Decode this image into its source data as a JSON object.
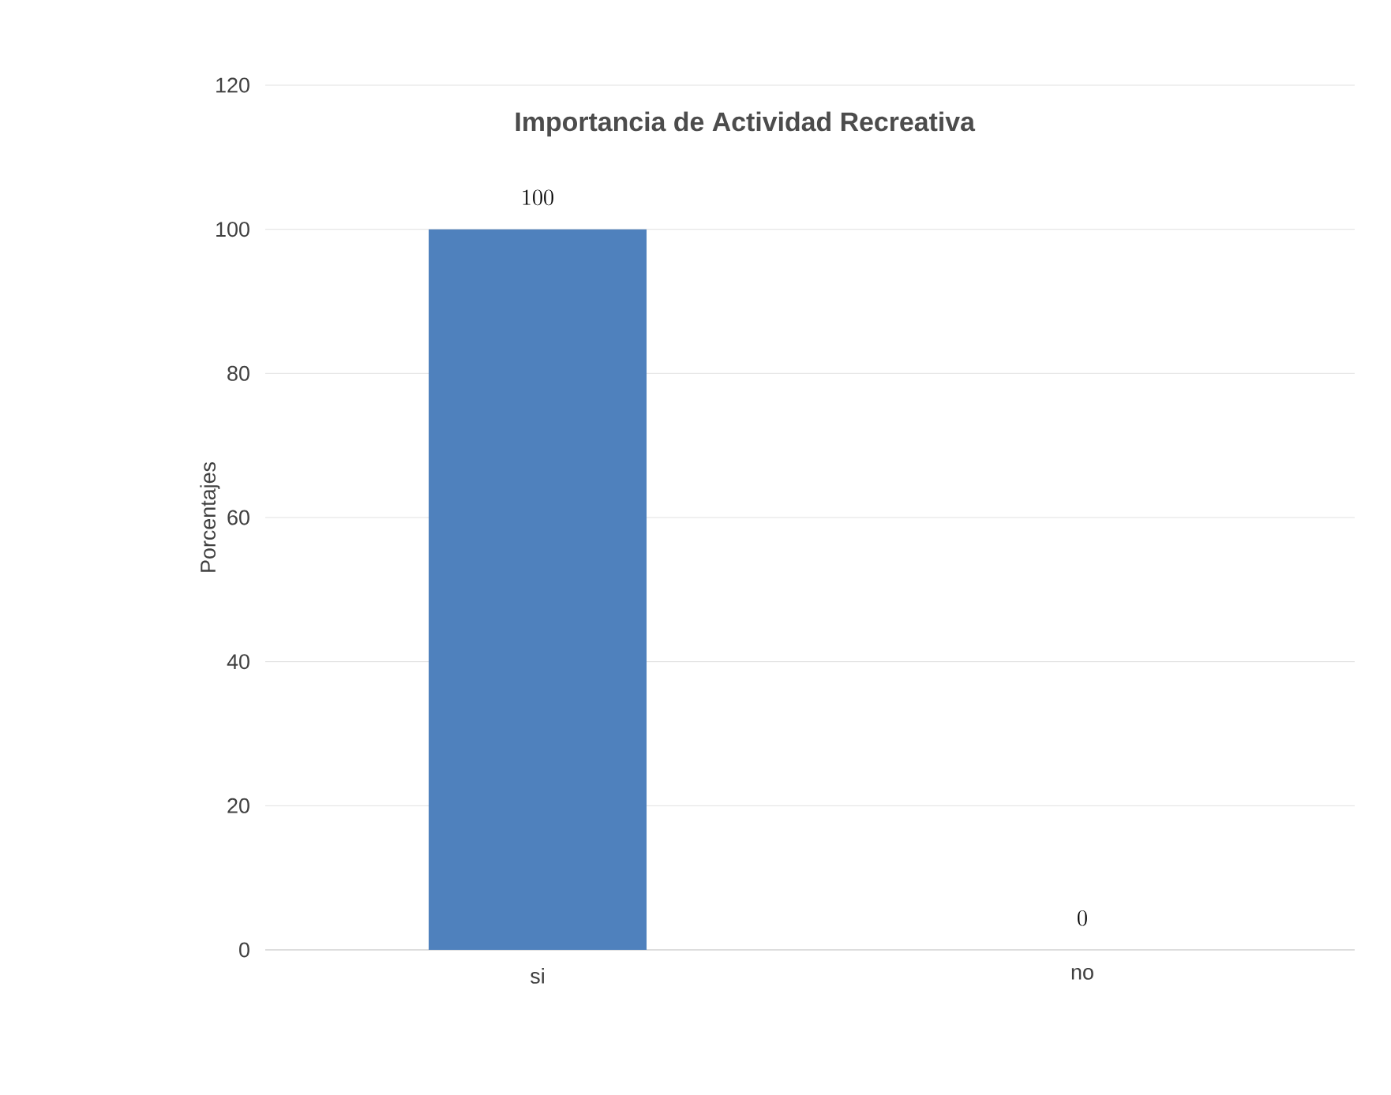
{
  "chart_data": {
    "type": "bar",
    "title": "Importancia de Actividad Recreativa",
    "ylabel": "Porcentajes",
    "categories": [
      "si",
      "no"
    ],
    "values": [
      100,
      0
    ],
    "color": "#4f81bd",
    "ylim": [
      0,
      120
    ],
    "yticks": [
      0,
      20,
      40,
      60,
      80,
      100,
      120
    ],
    "grid": "y",
    "data_labels": true
  }
}
